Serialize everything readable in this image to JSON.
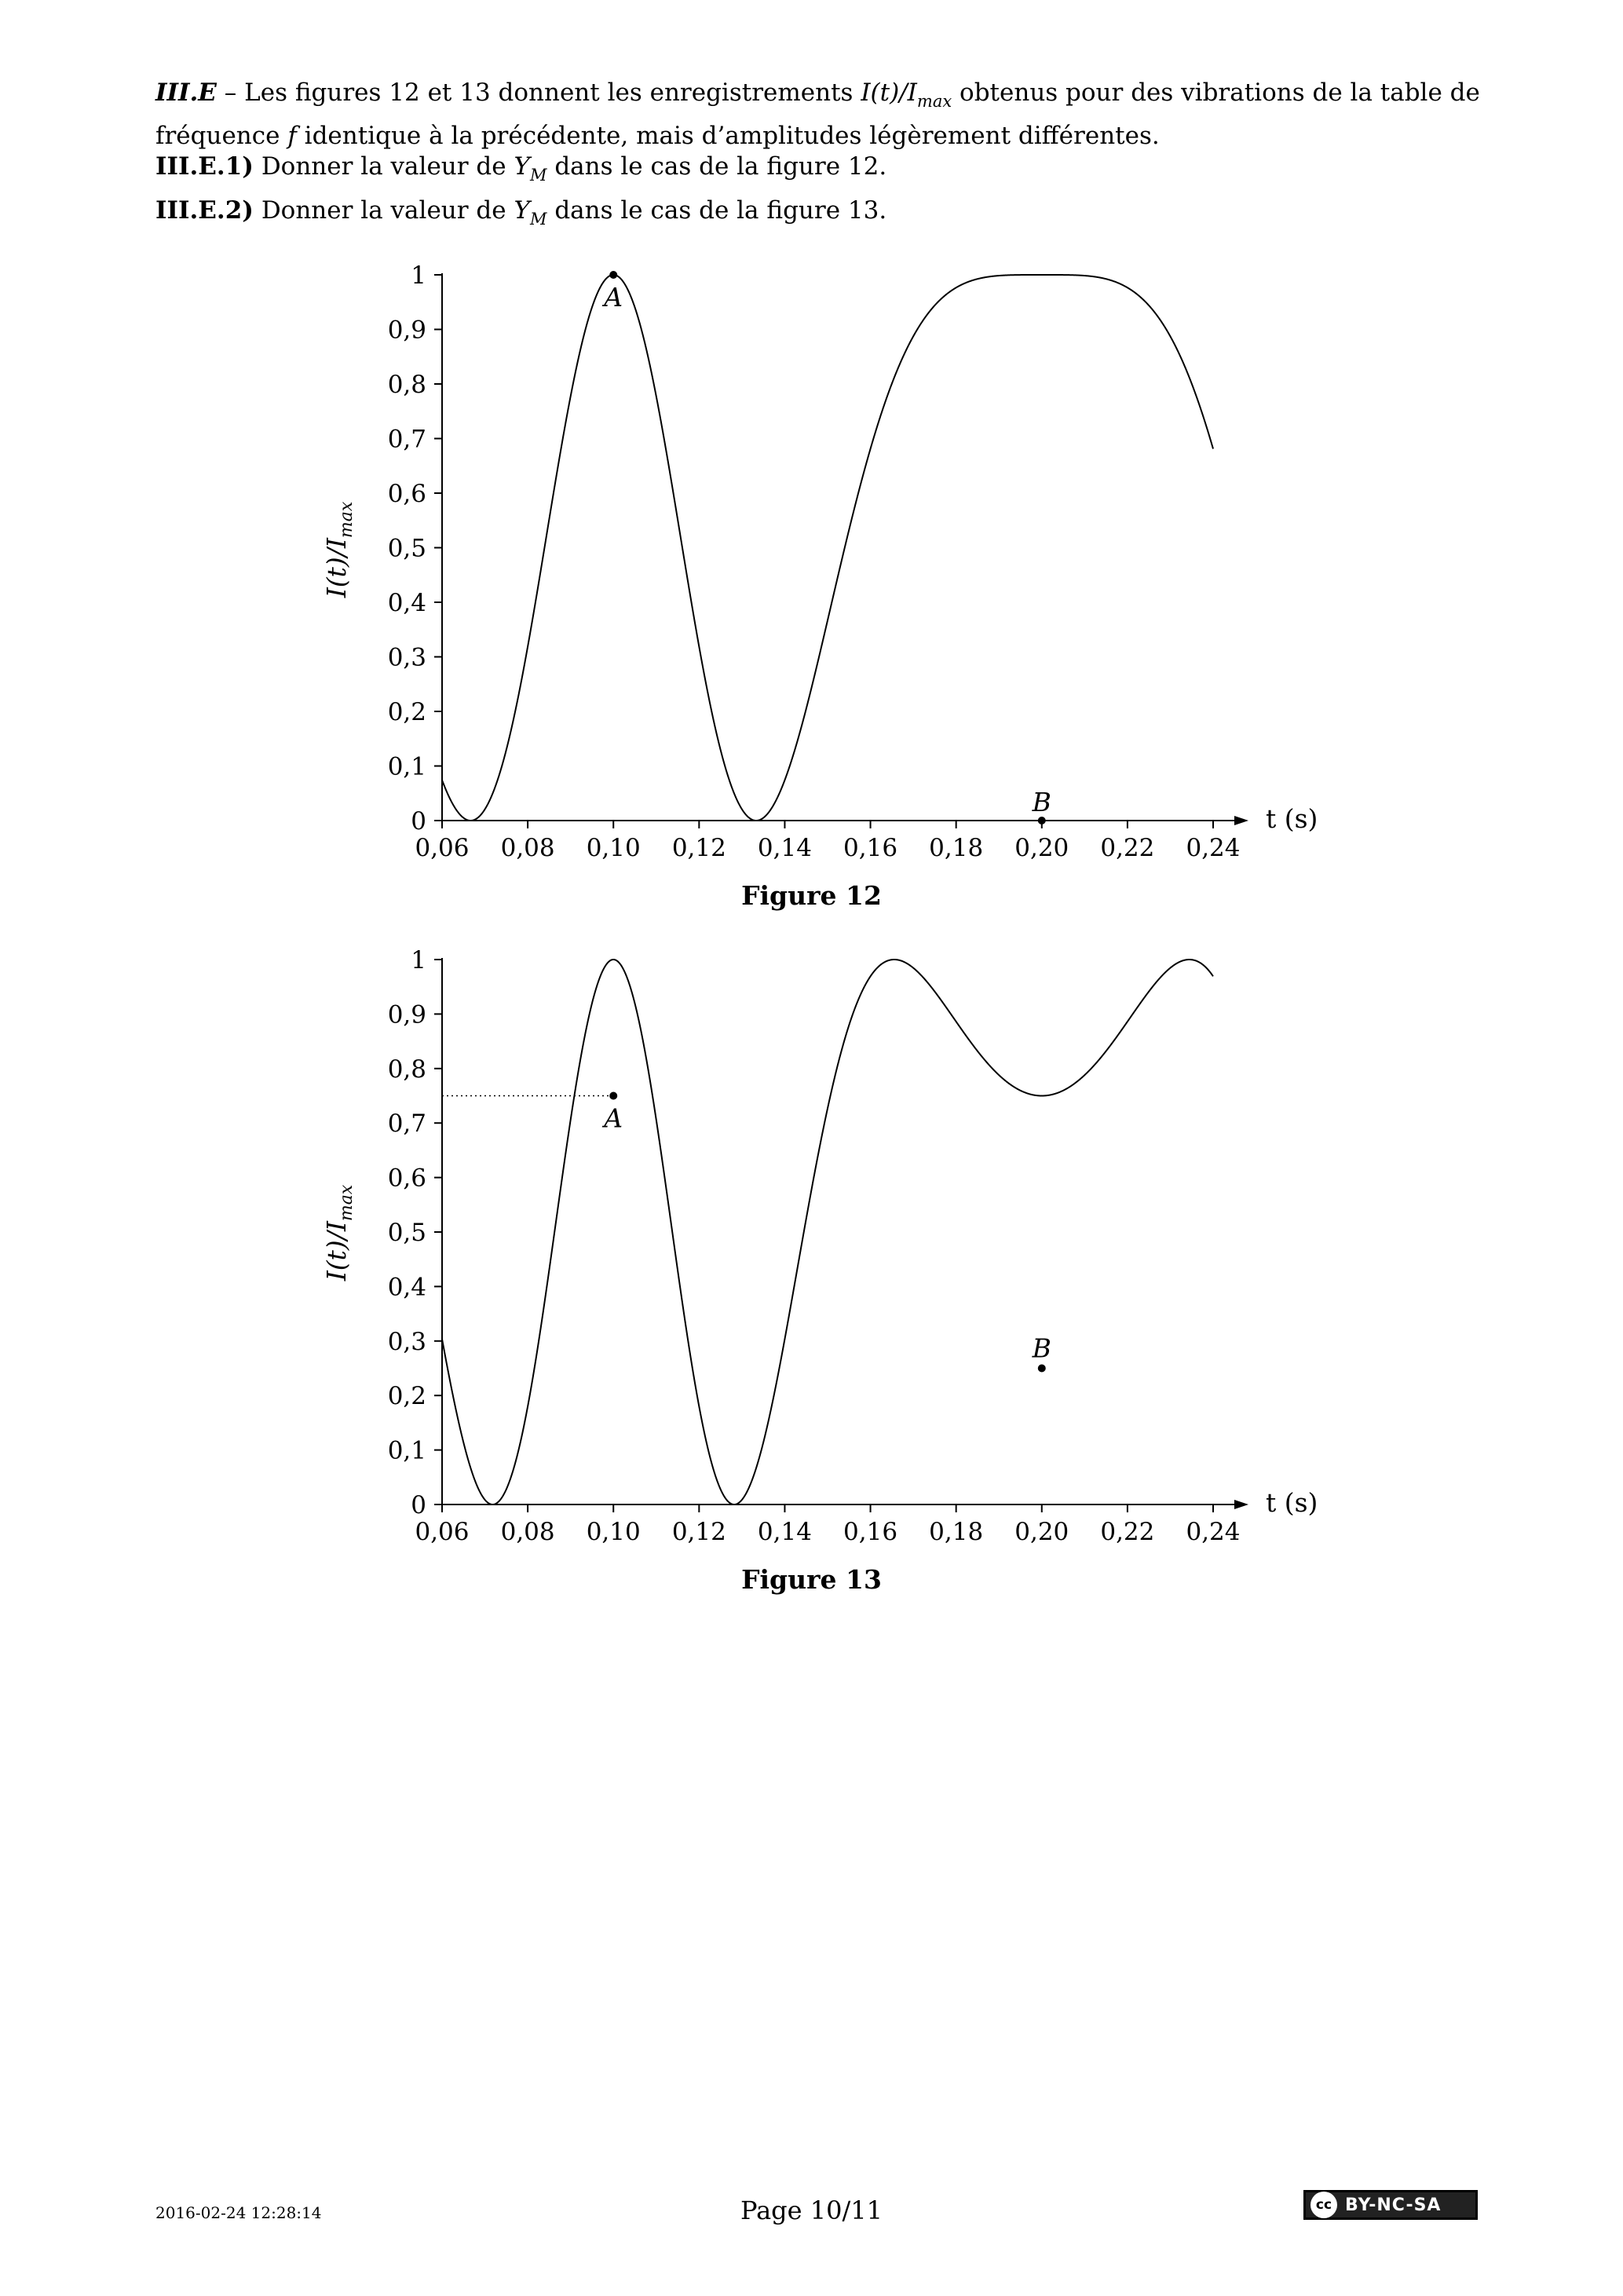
{
  "intro": {
    "label": "III.E",
    "sep": " – ",
    "text_a": "Les figures 12 et 13 donnent les enregistrements ",
    "formula_head": "I(t)/I",
    "formula_sub": "max",
    "text_b": " obtenus pour des vibrations de la table de fréquence ",
    "var_f": "f",
    "text_c": " identique à la précédente, mais d’amplitudes légèrement différentes."
  },
  "questions": [
    {
      "label": "III.E.1)",
      "text_a": " Donner la valeur de ",
      "var": "Y",
      "var_sub": "M",
      "text_b": " dans le cas de la figure 12."
    },
    {
      "label": "III.E.2)",
      "text_a": " Donner la valeur de ",
      "var": "Y",
      "var_sub": "M",
      "text_b": " dans le cas de la figure 13."
    }
  ],
  "figures": [
    {
      "caption": "Figure 12",
      "ylabel_head": "I(t)/I",
      "ylabel_sub": "max",
      "xlabel": "t (s)"
    },
    {
      "caption": "Figure 13",
      "ylabel_head": "I(t)/I",
      "ylabel_sub": "max",
      "xlabel": "t (s)"
    }
  ],
  "chart_data": [
    {
      "type": "line",
      "title": "Figure 12",
      "xlabel": "t (s)",
      "ylabel": "I(t)/Imax",
      "xlim": [
        0.06,
        0.24
      ],
      "ylim": [
        0,
        1
      ],
      "x_ticks": [
        "0,06",
        "0,08",
        "0,10",
        "0,12",
        "0,14",
        "0,16",
        "0,18",
        "0,20",
        "0,22",
        "0,24"
      ],
      "y_ticks": [
        "0",
        "0,1",
        "0,2",
        "0,3",
        "0,4",
        "0,5",
        "0,6",
        "0,7",
        "0,8",
        "0,9",
        "1"
      ],
      "x_tick_values": [
        0.06,
        0.08,
        0.1,
        0.12,
        0.14,
        0.16,
        0.18,
        0.2,
        0.22,
        0.24
      ],
      "y_tick_values": [
        0,
        0.1,
        0.2,
        0.3,
        0.4,
        0.5,
        0.6,
        0.7,
        0.8,
        0.9,
        1
      ],
      "curve": {
        "amplitude_rad": 3.14159,
        "vib_freq_hz": 2.5,
        "phase_rad": 0
      },
      "points": [
        {
          "label": "A",
          "x": 0.1,
          "y": 1.0
        },
        {
          "label": "B",
          "x": 0.2,
          "y": 0.0
        }
      ]
    },
    {
      "type": "line",
      "title": "Figure 13",
      "xlabel": "t (s)",
      "ylabel": "I(t)/Imax",
      "xlim": [
        0.06,
        0.24
      ],
      "ylim": [
        0,
        1
      ],
      "x_ticks": [
        "0,06",
        "0,08",
        "0,10",
        "0,12",
        "0,14",
        "0,16",
        "0,18",
        "0,20",
        "0,22",
        "0,24"
      ],
      "y_ticks": [
        "0",
        "0,1",
        "0,2",
        "0,3",
        "0,4",
        "0,5",
        "0,6",
        "0,7",
        "0,8",
        "0,9",
        "1"
      ],
      "x_tick_values": [
        0.06,
        0.08,
        0.1,
        0.12,
        0.14,
        0.16,
        0.18,
        0.2,
        0.22,
        0.24
      ],
      "y_tick_values": [
        0,
        0.1,
        0.2,
        0.3,
        0.4,
        0.5,
        0.6,
        0.7,
        0.8,
        0.9,
        1
      ],
      "curve": {
        "amplitude_rad": 3.6652,
        "vib_freq_hz": 2.5,
        "phase_rad": 0
      },
      "points": [
        {
          "label": "A",
          "x": 0.1,
          "y": 0.75
        },
        {
          "label": "B",
          "x": 0.2,
          "y": 0.25
        }
      ],
      "reference_line": {
        "y": 0.75,
        "style": "dotted"
      }
    }
  ],
  "footer": {
    "date": "2016-02-24 12:28:14",
    "page": "Page 10/11",
    "license_icon": "cc",
    "license": "BY-NC-SA"
  }
}
